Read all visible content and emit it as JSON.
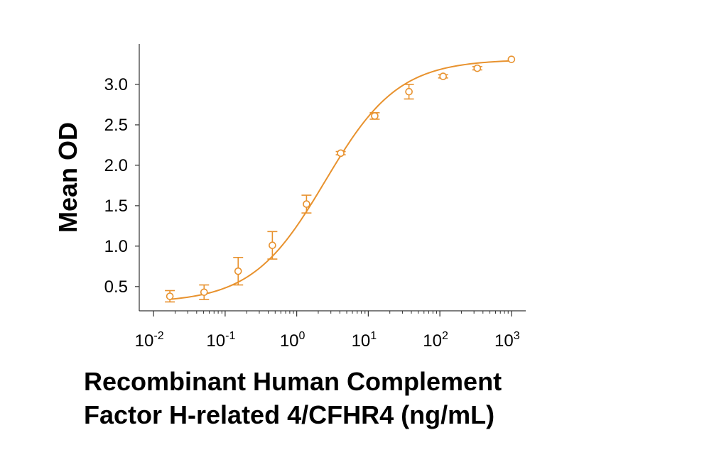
{
  "chart_data": {
    "type": "scatter",
    "title": "",
    "xlabel": "Recombinant Human Complement Factor H-related 4/CFHR4 (ng/mL)",
    "xlabel_lines": [
      "Recombinant Human Complement",
      "Factor H-related 4/CFHR4 (ng/mL)"
    ],
    "ylabel": "Mean OD",
    "x_scale": "log",
    "xlim": [
      0.01,
      1000
    ],
    "ylim": [
      0.2,
      3.5
    ],
    "y_ticks": [
      "0.5",
      "1.0",
      "1.5",
      "2.0",
      "2.5",
      "3.0"
    ],
    "x_ticks": [
      {
        "base": "10",
        "exp": "-2"
      },
      {
        "base": "10",
        "exp": "-1"
      },
      {
        "base": "10",
        "exp": "0"
      },
      {
        "base": "10",
        "exp": "1"
      },
      {
        "base": "10",
        "exp": "2"
      },
      {
        "base": "10",
        "exp": "3"
      }
    ],
    "grid": false,
    "legend": "none",
    "color": "#E8922E",
    "series": [
      {
        "x": [
          0.0169,
          0.0508,
          0.152,
          0.457,
          1.37,
          4.12,
          12.3,
          37.0,
          111,
          333,
          1000
        ],
        "y": [
          0.38,
          0.43,
          0.69,
          1.01,
          1.52,
          2.15,
          2.61,
          2.91,
          3.1,
          3.2,
          3.31
        ],
        "err": [
          0.07,
          0.09,
          0.17,
          0.17,
          0.11,
          0.02,
          0.04,
          0.09,
          0.02,
          0.02,
          0.0
        ]
      }
    ],
    "fit": {
      "bottom": 0.3,
      "top": 3.31,
      "ec50": 2.5,
      "hill": 0.85
    }
  }
}
